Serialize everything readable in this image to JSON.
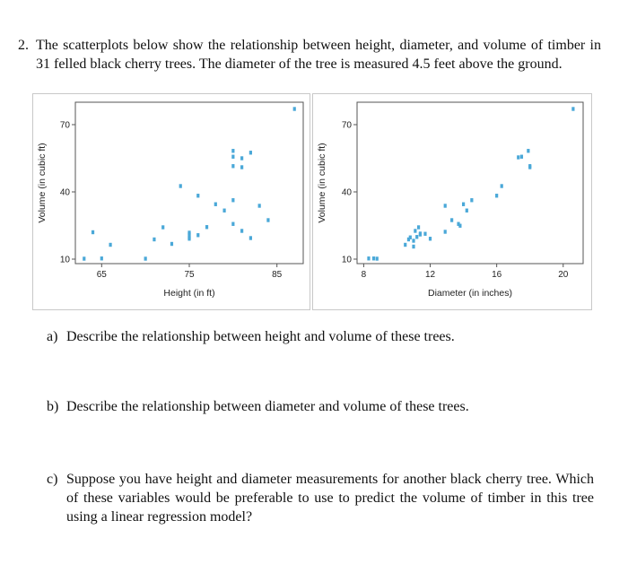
{
  "problem": {
    "number": "2.",
    "intro": "The scatterplots below show the relationship between height, diameter, and volume of timber in 31 felled black cherry trees. The diameter of the tree is measured 4.5 feet above the ground."
  },
  "questions": [
    {
      "label": "a)",
      "text": "Describe the relationship between height and volume of these trees."
    },
    {
      "label": "b)",
      "text": "Describe the relationship between diameter and volume of these trees."
    },
    {
      "label": "c)",
      "text": "Suppose you have height and diameter measurements for another black cherry tree. Which of these variables would be preferable to use to predict the volume of timber in this tree using a linear regression model?"
    }
  ],
  "colors": {
    "point": "#4aa8d8",
    "axis": "#555555",
    "frame": "#c8c8c8"
  },
  "chart_data": [
    {
      "type": "scatter",
      "title": "",
      "xlabel": "Height (in ft)",
      "ylabel": "Volume (in cubic ft)",
      "xlim": [
        62,
        88
      ],
      "ylim": [
        8,
        80
      ],
      "xticks": [
        "65",
        "75",
        "85"
      ],
      "yticks": [
        "10",
        "40",
        "70"
      ],
      "x": [
        63,
        64,
        65,
        66,
        70,
        71,
        72,
        73,
        74,
        75,
        75,
        75,
        75,
        76,
        76,
        77,
        78,
        79,
        80,
        80,
        80,
        80,
        80,
        81,
        81,
        81,
        82,
        82,
        83,
        84,
        87
      ],
      "y": [
        10.2,
        22.0,
        10.3,
        16.4,
        10.2,
        18.8,
        24.2,
        16.8,
        42.6,
        19.7,
        21.0,
        19.1,
        21.8,
        20.7,
        38.3,
        24.3,
        34.5,
        31.7,
        25.7,
        36.3,
        58.3,
        55.7,
        51.5,
        55.0,
        22.6,
        51.0,
        57.5,
        19.4,
        33.8,
        27.4,
        77.0
      ]
    },
    {
      "type": "scatter",
      "title": "",
      "xlabel": "Diameter (in inches)",
      "ylabel": "Volume (in cubic ft)",
      "xlim": [
        7.6,
        21.2
      ],
      "ylim": [
        8,
        80
      ],
      "xticks": [
        "8",
        "12",
        "16",
        "20"
      ],
      "yticks": [
        "10",
        "40",
        "70"
      ],
      "x": [
        8.3,
        8.6,
        8.8,
        10.5,
        10.7,
        10.8,
        11.0,
        11.0,
        11.1,
        11.2,
        11.3,
        11.4,
        11.4,
        11.7,
        12.0,
        12.9,
        12.9,
        13.3,
        13.7,
        13.8,
        14.0,
        14.2,
        14.5,
        16.0,
        16.3,
        17.3,
        17.5,
        17.9,
        18.0,
        18.0,
        20.6
      ],
      "y": [
        10.3,
        10.3,
        10.2,
        16.4,
        18.8,
        19.7,
        15.6,
        18.2,
        22.6,
        19.9,
        24.2,
        21.0,
        21.4,
        21.3,
        19.1,
        22.2,
        33.8,
        27.4,
        25.7,
        24.9,
        34.5,
        31.7,
        36.3,
        38.3,
        42.6,
        55.4,
        55.7,
        58.3,
        51.5,
        51.0,
        77.0
      ]
    }
  ]
}
